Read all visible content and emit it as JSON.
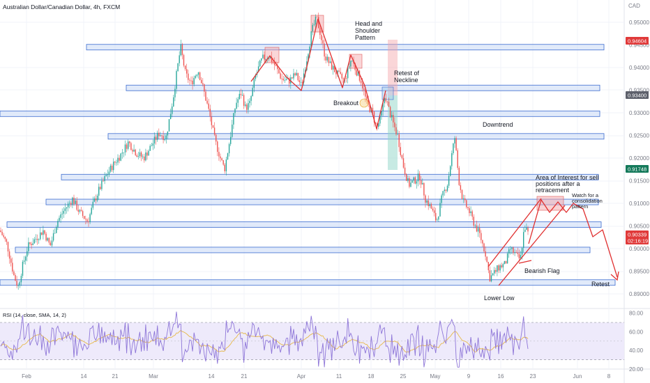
{
  "title": "Australian Dollar/Canadian Dollar, 4h, FXCM",
  "currency_label": "CAD",
  "rsi_label": "RSI (14, close, SMA, 14, 2)",
  "colors": {
    "up": "#26a69a",
    "down": "#ef5350",
    "zone_fill": "#c9d8f5",
    "zone_stroke": "#3c6cd0",
    "red_line": "#e03030",
    "rsi_line": "#8e76d8",
    "rsi_ma": "#e6b84a",
    "rsi_band": "#ece8fb"
  },
  "chart_data": {
    "type": "candlestick",
    "symbol": "AUDCAD",
    "timeframe": "4h",
    "y_ticks": [
      "0.95000",
      "0.94500",
      "0.94000",
      "0.93500",
      "0.93000",
      "0.92500",
      "0.92000",
      "0.91500",
      "0.91000",
      "0.90500",
      "0.90000",
      "0.89500",
      "0.89000"
    ],
    "x_ticks": [
      "Feb",
      "14",
      "21",
      "Mar",
      "14",
      "21",
      "Apr",
      "11",
      "18",
      "25",
      "May",
      "9",
      "16",
      "23",
      "Jun",
      "8"
    ],
    "price_badges": [
      {
        "text": "0.94604",
        "color": "#e03a3a"
      },
      {
        "text": "0.93400",
        "color": "#5d606b"
      },
      {
        "text": "0.91748",
        "color": "#157a5b"
      },
      {
        "text": "0.90339",
        "color": "#e03a3a"
      },
      {
        "text": "02:16:19",
        "color": "#e03a3a"
      }
    ],
    "annotations": [
      "Head and Shoulder Pattern",
      "Retest of Neckline",
      "Breakout",
      "Downtrend",
      "Area of Interest for sell positions after a retracement",
      "Watch for a consolidation pattern",
      "Bearish Flag",
      "Retest",
      "Lower Low"
    ],
    "rsi": {
      "ticks": [
        "80.00",
        "60.00",
        "40.00",
        "20.00"
      ],
      "upper": 70,
      "lower": 30,
      "range": [
        20,
        85
      ]
    },
    "ylim": [
      0.8885,
      0.9555
    ]
  }
}
